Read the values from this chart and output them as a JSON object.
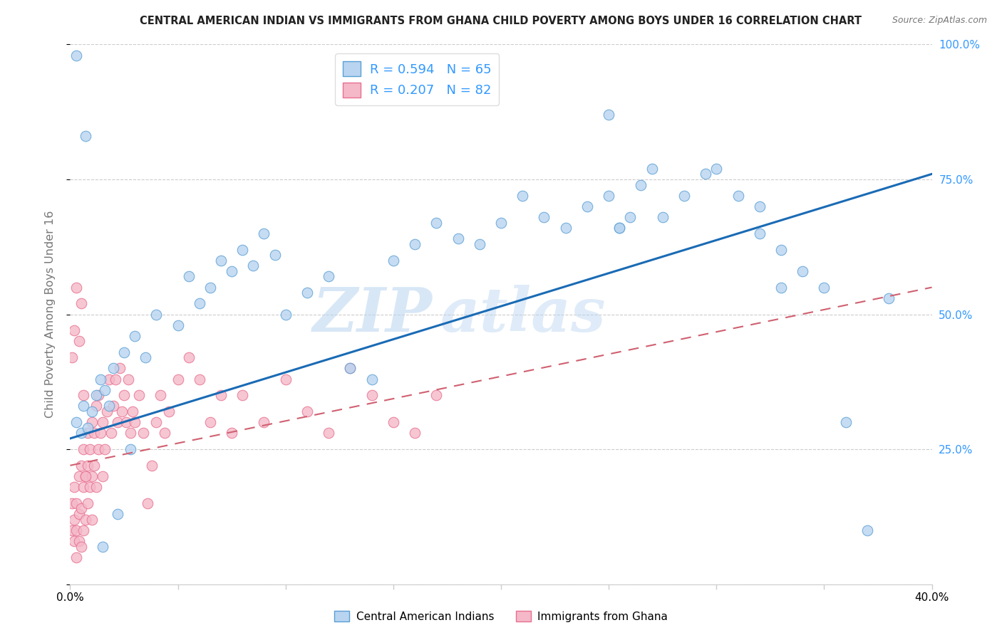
{
  "title": "CENTRAL AMERICAN INDIAN VS IMMIGRANTS FROM GHANA CHILD POVERTY AMONG BOYS UNDER 16 CORRELATION CHART",
  "source": "Source: ZipAtlas.com",
  "ylabel": "Child Poverty Among Boys Under 16",
  "xlim": [
    0.0,
    0.4
  ],
  "ylim": [
    0.0,
    1.0
  ],
  "R_blue": 0.594,
  "N_blue": 65,
  "R_pink": 0.207,
  "N_pink": 82,
  "blue_face": "#b8d4f0",
  "blue_edge": "#5a9fd4",
  "pink_face": "#f4b8c8",
  "pink_edge": "#e87090",
  "line_blue": "#1a6bb5",
  "line_pink": "#d06070",
  "legend_label_blue": "Central American Indians",
  "legend_label_pink": "Immigrants from Ghana",
  "watermark_top": "ZIP",
  "watermark_bot": "atlas",
  "blue_scatter_x": [
    0.003,
    0.005,
    0.006,
    0.008,
    0.01,
    0.012,
    0.014,
    0.016,
    0.018,
    0.02,
    0.025,
    0.03,
    0.035,
    0.04,
    0.05,
    0.055,
    0.06,
    0.065,
    0.07,
    0.075,
    0.08,
    0.085,
    0.09,
    0.095,
    0.1,
    0.11,
    0.12,
    0.13,
    0.14,
    0.15,
    0.16,
    0.17,
    0.18,
    0.19,
    0.2,
    0.21,
    0.22,
    0.23,
    0.24,
    0.25,
    0.255,
    0.26,
    0.265,
    0.27,
    0.275,
    0.285,
    0.295,
    0.3,
    0.31,
    0.32,
    0.33,
    0.34,
    0.35,
    0.36,
    0.37,
    0.003,
    0.007,
    0.015,
    0.022,
    0.028,
    0.25,
    0.255,
    0.32,
    0.33,
    0.38
  ],
  "blue_scatter_y": [
    0.3,
    0.28,
    0.33,
    0.29,
    0.32,
    0.35,
    0.38,
    0.36,
    0.33,
    0.4,
    0.43,
    0.46,
    0.42,
    0.5,
    0.48,
    0.57,
    0.52,
    0.55,
    0.6,
    0.58,
    0.62,
    0.59,
    0.65,
    0.61,
    0.5,
    0.54,
    0.57,
    0.4,
    0.38,
    0.6,
    0.63,
    0.67,
    0.64,
    0.63,
    0.67,
    0.72,
    0.68,
    0.66,
    0.7,
    0.72,
    0.66,
    0.68,
    0.74,
    0.77,
    0.68,
    0.72,
    0.76,
    0.77,
    0.72,
    0.7,
    0.62,
    0.58,
    0.55,
    0.3,
    0.1,
    0.98,
    0.83,
    0.07,
    0.13,
    0.25,
    0.87,
    0.66,
    0.65,
    0.55,
    0.53
  ],
  "pink_scatter_x": [
    0.001,
    0.001,
    0.002,
    0.002,
    0.002,
    0.003,
    0.003,
    0.003,
    0.004,
    0.004,
    0.004,
    0.005,
    0.005,
    0.005,
    0.006,
    0.006,
    0.006,
    0.007,
    0.007,
    0.008,
    0.008,
    0.008,
    0.009,
    0.009,
    0.01,
    0.01,
    0.01,
    0.011,
    0.011,
    0.012,
    0.012,
    0.013,
    0.013,
    0.014,
    0.015,
    0.015,
    0.016,
    0.017,
    0.018,
    0.019,
    0.02,
    0.021,
    0.022,
    0.023,
    0.024,
    0.025,
    0.026,
    0.027,
    0.028,
    0.029,
    0.03,
    0.032,
    0.034,
    0.036,
    0.038,
    0.04,
    0.042,
    0.044,
    0.046,
    0.05,
    0.055,
    0.06,
    0.065,
    0.07,
    0.075,
    0.08,
    0.09,
    0.1,
    0.11,
    0.12,
    0.13,
    0.14,
    0.15,
    0.16,
    0.17,
    0.001,
    0.002,
    0.003,
    0.004,
    0.005,
    0.006,
    0.007
  ],
  "pink_scatter_y": [
    0.1,
    0.15,
    0.08,
    0.12,
    0.18,
    0.05,
    0.1,
    0.15,
    0.08,
    0.13,
    0.2,
    0.07,
    0.14,
    0.22,
    0.1,
    0.18,
    0.25,
    0.12,
    0.2,
    0.15,
    0.22,
    0.28,
    0.18,
    0.25,
    0.12,
    0.2,
    0.3,
    0.22,
    0.28,
    0.18,
    0.33,
    0.25,
    0.35,
    0.28,
    0.2,
    0.3,
    0.25,
    0.32,
    0.38,
    0.28,
    0.33,
    0.38,
    0.3,
    0.4,
    0.32,
    0.35,
    0.3,
    0.38,
    0.28,
    0.32,
    0.3,
    0.35,
    0.28,
    0.15,
    0.22,
    0.3,
    0.35,
    0.28,
    0.32,
    0.38,
    0.42,
    0.38,
    0.3,
    0.35,
    0.28,
    0.35,
    0.3,
    0.38,
    0.32,
    0.28,
    0.4,
    0.35,
    0.3,
    0.28,
    0.35,
    0.42,
    0.47,
    0.55,
    0.45,
    0.52,
    0.35,
    0.2
  ],
  "blue_trendline": [
    0.27,
    0.76
  ],
  "pink_trendline": [
    0.22,
    0.55
  ]
}
